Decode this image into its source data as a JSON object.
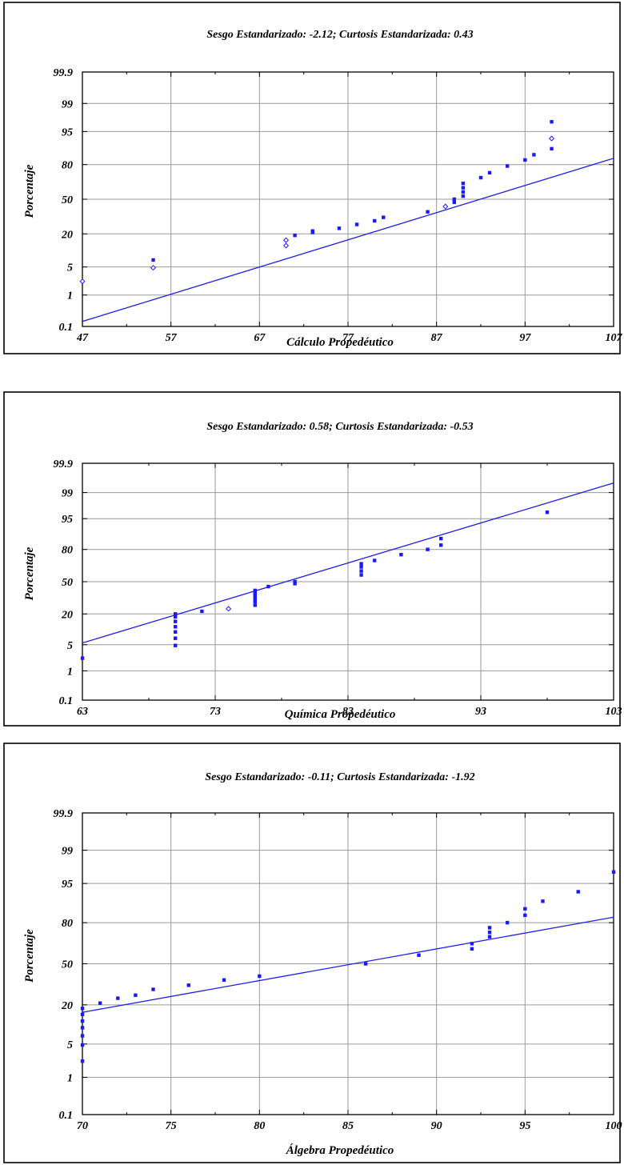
{
  "colors": {
    "points": "#1a1aff",
    "fit_line": "#1e1ee6",
    "grid": "#9a9a9a"
  },
  "chart_data": [
    {
      "type": "scatter",
      "title": "Sesgo Estandarizado: -2.12; Curtosis Estandarizada: 0.43",
      "xlabel": "Cálculo Propedéutico",
      "ylabel": "Porcentaje",
      "xlim": [
        47,
        107
      ],
      "xticks": [
        47,
        57,
        67,
        77,
        87,
        97,
        107
      ],
      "xtick_labels": [
        "47",
        "57",
        "67",
        "77",
        "87",
        "97",
        "107"
      ],
      "yticks": [
        0.1,
        1,
        5,
        20,
        50,
        80,
        95,
        99,
        99.9
      ],
      "ytick_labels": [
        "0.1",
        "1",
        "5",
        "20",
        "50",
        "80",
        "95",
        "99",
        "99.9"
      ],
      "y_scale": "normal-probability",
      "grid": true,
      "fit_line": {
        "x": [
          47,
          107
        ],
        "y": [
          0.15,
          84
        ]
      },
      "points": [
        {
          "x": 47,
          "y": 2.3
        },
        {
          "x": 55,
          "y": 4.8
        },
        {
          "x": 55,
          "y": 7
        },
        {
          "x": 70,
          "y": 13
        },
        {
          "x": 70,
          "y": 16
        },
        {
          "x": 71,
          "y": 19
        },
        {
          "x": 73,
          "y": 21
        },
        {
          "x": 73,
          "y": 22
        },
        {
          "x": 76,
          "y": 24
        },
        {
          "x": 78,
          "y": 27
        },
        {
          "x": 80,
          "y": 30
        },
        {
          "x": 81,
          "y": 33
        },
        {
          "x": 86,
          "y": 38
        },
        {
          "x": 88,
          "y": 43
        },
        {
          "x": 89,
          "y": 47
        },
        {
          "x": 89,
          "y": 50
        },
        {
          "x": 90,
          "y": 53
        },
        {
          "x": 90,
          "y": 57
        },
        {
          "x": 90,
          "y": 61
        },
        {
          "x": 90,
          "y": 65
        },
        {
          "x": 92,
          "y": 70
        },
        {
          "x": 93,
          "y": 74
        },
        {
          "x": 95,
          "y": 79
        },
        {
          "x": 97,
          "y": 83
        },
        {
          "x": 98,
          "y": 86
        },
        {
          "x": 100,
          "y": 89
        },
        {
          "x": 100,
          "y": 93
        },
        {
          "x": 100,
          "y": 97
        }
      ],
      "open_points": [
        0,
        1,
        3,
        4,
        13,
        26
      ]
    },
    {
      "type": "scatter",
      "title": "Sesgo Estandarizado: 0.58; Curtosis Estandarizada: -0.53",
      "xlabel": "Química Propedéutico",
      "ylabel": "Porcentaje",
      "xlim": [
        63,
        103
      ],
      "xticks": [
        63,
        73,
        83,
        93,
        103
      ],
      "xtick_labels": [
        "63",
        "73",
        "83",
        "93",
        "103"
      ],
      "yticks": [
        0.1,
        1,
        5,
        20,
        50,
        80,
        95,
        99,
        99.9
      ],
      "ytick_labels": [
        "0.1",
        "1",
        "5",
        "20",
        "50",
        "80",
        "95",
        "99",
        "99.9"
      ],
      "y_scale": "normal-probability",
      "grid": true,
      "fit_line": {
        "x": [
          63,
          103
        ],
        "y": [
          5.5,
          99.5
        ]
      },
      "points": [
        {
          "x": 63,
          "y": 2.3
        },
        {
          "x": 70,
          "y": 4.8
        },
        {
          "x": 70,
          "y": 7
        },
        {
          "x": 70,
          "y": 9.5
        },
        {
          "x": 70,
          "y": 12
        },
        {
          "x": 70,
          "y": 15
        },
        {
          "x": 70,
          "y": 18
        },
        {
          "x": 70,
          "y": 20
        },
        {
          "x": 72,
          "y": 22
        },
        {
          "x": 74,
          "y": 24
        },
        {
          "x": 76,
          "y": 27
        },
        {
          "x": 76,
          "y": 30
        },
        {
          "x": 76,
          "y": 33
        },
        {
          "x": 76,
          "y": 36
        },
        {
          "x": 76,
          "y": 38
        },
        {
          "x": 76,
          "y": 41
        },
        {
          "x": 77,
          "y": 45
        },
        {
          "x": 79,
          "y": 48
        },
        {
          "x": 79,
          "y": 50
        },
        {
          "x": 84,
          "y": 57
        },
        {
          "x": 84,
          "y": 61
        },
        {
          "x": 84,
          "y": 65
        },
        {
          "x": 84,
          "y": 68
        },
        {
          "x": 85,
          "y": 71
        },
        {
          "x": 87,
          "y": 76
        },
        {
          "x": 89,
          "y": 80
        },
        {
          "x": 90,
          "y": 83
        },
        {
          "x": 90,
          "y": 87
        },
        {
          "x": 98,
          "y": 96.5
        }
      ],
      "open_points": [
        9
      ]
    },
    {
      "type": "scatter",
      "title": "Sesgo Estandarizado: -0.11; Curtosis Estandarizada: -1.92",
      "xlabel": "Álgebra Propedéutico",
      "ylabel": "Porcentaje",
      "xlim": [
        70,
        100
      ],
      "xticks": [
        70,
        75,
        80,
        85,
        90,
        95,
        100
      ],
      "xtick_labels": [
        "70",
        "75",
        "80",
        "85",
        "90",
        "95",
        "100"
      ],
      "yticks": [
        0.1,
        1,
        5,
        20,
        50,
        80,
        95,
        99,
        99.9
      ],
      "ytick_labels": [
        "0.1",
        "1",
        "5",
        "20",
        "50",
        "80",
        "95",
        "99",
        "99.9"
      ],
      "y_scale": "normal-probability",
      "grid": true,
      "fit_line": {
        "x": [
          70,
          100
        ],
        "y": [
          16,
          83
        ]
      },
      "points": [
        {
          "x": 70,
          "y": 2.3
        },
        {
          "x": 70,
          "y": 4.8
        },
        {
          "x": 70,
          "y": 7
        },
        {
          "x": 70,
          "y": 9.5
        },
        {
          "x": 70,
          "y": 12
        },
        {
          "x": 70,
          "y": 15
        },
        {
          "x": 70,
          "y": 18
        },
        {
          "x": 71,
          "y": 21
        },
        {
          "x": 72,
          "y": 24
        },
        {
          "x": 73,
          "y": 26
        },
        {
          "x": 74,
          "y": 30
        },
        {
          "x": 76,
          "y": 33
        },
        {
          "x": 78,
          "y": 37
        },
        {
          "x": 80,
          "y": 40
        },
        {
          "x": 86,
          "y": 50
        },
        {
          "x": 89,
          "y": 57
        },
        {
          "x": 92,
          "y": 62
        },
        {
          "x": 92,
          "y": 66
        },
        {
          "x": 93,
          "y": 71
        },
        {
          "x": 93,
          "y": 74
        },
        {
          "x": 93,
          "y": 77
        },
        {
          "x": 94,
          "y": 80
        },
        {
          "x": 95,
          "y": 84
        },
        {
          "x": 95,
          "y": 87
        },
        {
          "x": 96,
          "y": 90
        },
        {
          "x": 98,
          "y": 93
        },
        {
          "x": 100,
          "y": 97
        }
      ],
      "open_points": []
    }
  ]
}
